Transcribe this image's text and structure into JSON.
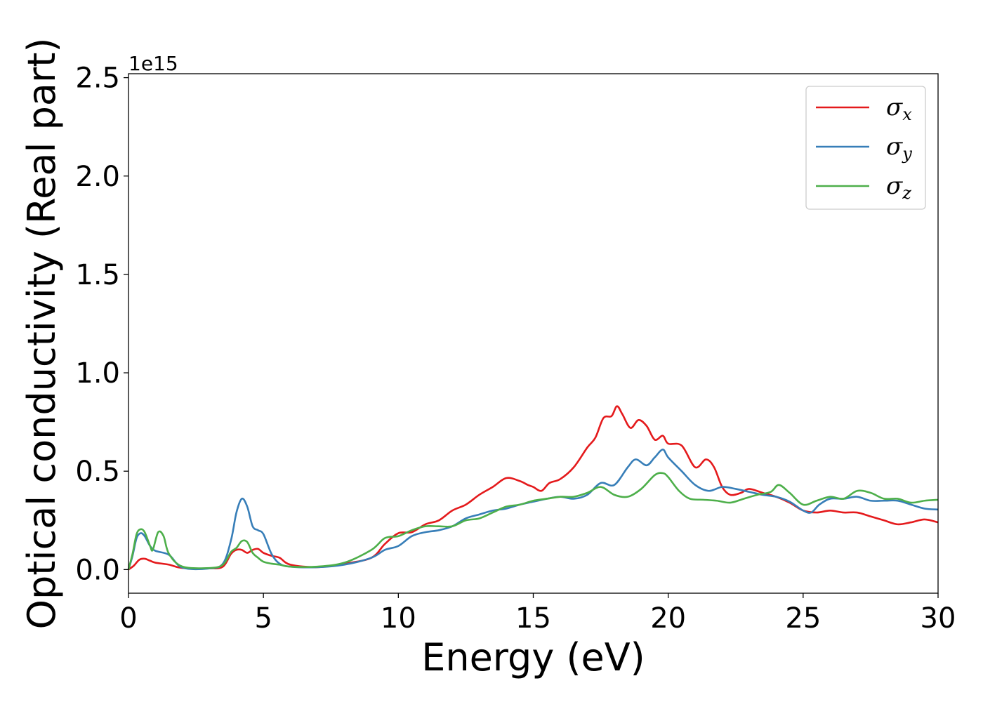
{
  "chart_data": {
    "type": "line",
    "xlabel": "Energy (eV)",
    "ylabel": "Optical conductivity (Real part)",
    "y_offset_text": "1e15",
    "xlim": [
      0,
      30
    ],
    "ylim": [
      -0.12,
      2.52
    ],
    "x_ticks": [
      0,
      5,
      10,
      15,
      20,
      25,
      30
    ],
    "x_tick_labels": [
      "0",
      "5",
      "10",
      "15",
      "20",
      "25",
      "30"
    ],
    "y_ticks": [
      0.0,
      0.5,
      1.0,
      1.5,
      2.0,
      2.5
    ],
    "y_tick_labels": [
      "0.0",
      "0.5",
      "1.0",
      "1.5",
      "2.0",
      "2.5"
    ],
    "grid": false,
    "legend_position": "top-right",
    "series": [
      {
        "name": "σx",
        "legend_base": "σ",
        "legend_sub": "x",
        "color": "#e41a1c",
        "points": [
          [
            0,
            0
          ],
          [
            0.2,
            0.02
          ],
          [
            0.4,
            0.05
          ],
          [
            0.6,
            0.055
          ],
          [
            0.8,
            0.045
          ],
          [
            1,
            0.035
          ],
          [
            1.5,
            0.025
          ],
          [
            2,
            0.008
          ],
          [
            3,
            0.006
          ],
          [
            3.5,
            0.015
          ],
          [
            3.8,
            0.08
          ],
          [
            4,
            0.1
          ],
          [
            4.2,
            0.1
          ],
          [
            4.4,
            0.085
          ],
          [
            4.6,
            0.1
          ],
          [
            4.8,
            0.105
          ],
          [
            5,
            0.085
          ],
          [
            5.3,
            0.07
          ],
          [
            5.6,
            0.06
          ],
          [
            6,
            0.025
          ],
          [
            7,
            0.012
          ],
          [
            8,
            0.03
          ],
          [
            9,
            0.06
          ],
          [
            9.5,
            0.13
          ],
          [
            10,
            0.185
          ],
          [
            10.5,
            0.19
          ],
          [
            11,
            0.23
          ],
          [
            11.5,
            0.25
          ],
          [
            12,
            0.3
          ],
          [
            12.5,
            0.33
          ],
          [
            13,
            0.38
          ],
          [
            13.5,
            0.42
          ],
          [
            14,
            0.465
          ],
          [
            14.5,
            0.45
          ],
          [
            14.8,
            0.43
          ],
          [
            15,
            0.42
          ],
          [
            15.3,
            0.4
          ],
          [
            15.6,
            0.44
          ],
          [
            16,
            0.46
          ],
          [
            16.5,
            0.52
          ],
          [
            17,
            0.62
          ],
          [
            17.3,
            0.67
          ],
          [
            17.6,
            0.77
          ],
          [
            17.9,
            0.78
          ],
          [
            18.1,
            0.83
          ],
          [
            18.3,
            0.79
          ],
          [
            18.6,
            0.72
          ],
          [
            18.9,
            0.76
          ],
          [
            19.2,
            0.73
          ],
          [
            19.5,
            0.66
          ],
          [
            19.8,
            0.68
          ],
          [
            20,
            0.64
          ],
          [
            20.5,
            0.63
          ],
          [
            21,
            0.52
          ],
          [
            21.4,
            0.56
          ],
          [
            21.7,
            0.52
          ],
          [
            22,
            0.42
          ],
          [
            22.3,
            0.38
          ],
          [
            22.7,
            0.39
          ],
          [
            23,
            0.41
          ],
          [
            23.5,
            0.39
          ],
          [
            24,
            0.37
          ],
          [
            24.5,
            0.34
          ],
          [
            25,
            0.3
          ],
          [
            25.5,
            0.29
          ],
          [
            26,
            0.3
          ],
          [
            26.5,
            0.29
          ],
          [
            27,
            0.29
          ],
          [
            27.5,
            0.27
          ],
          [
            28,
            0.25
          ],
          [
            28.5,
            0.23
          ],
          [
            29,
            0.24
          ],
          [
            29.5,
            0.255
          ],
          [
            30,
            0.24
          ]
        ]
      },
      {
        "name": "σy",
        "legend_base": "σ",
        "legend_sub": "y",
        "color": "#377eb8",
        "points": [
          [
            0,
            0
          ],
          [
            0.15,
            0.07
          ],
          [
            0.3,
            0.16
          ],
          [
            0.45,
            0.185
          ],
          [
            0.6,
            0.17
          ],
          [
            0.8,
            0.12
          ],
          [
            1,
            0.095
          ],
          [
            1.5,
            0.075
          ],
          [
            2,
            0.01
          ],
          [
            3,
            0.006
          ],
          [
            3.5,
            0.03
          ],
          [
            3.8,
            0.15
          ],
          [
            4,
            0.29
          ],
          [
            4.2,
            0.36
          ],
          [
            4.4,
            0.32
          ],
          [
            4.6,
            0.22
          ],
          [
            4.8,
            0.2
          ],
          [
            5,
            0.18
          ],
          [
            5.3,
            0.08
          ],
          [
            5.6,
            0.03
          ],
          [
            6,
            0.015
          ],
          [
            7,
            0.012
          ],
          [
            8,
            0.025
          ],
          [
            9,
            0.06
          ],
          [
            9.5,
            0.1
          ],
          [
            10,
            0.12
          ],
          [
            10.5,
            0.17
          ],
          [
            11,
            0.19
          ],
          [
            11.5,
            0.2
          ],
          [
            12,
            0.22
          ],
          [
            12.5,
            0.26
          ],
          [
            13,
            0.28
          ],
          [
            13.5,
            0.3
          ],
          [
            14,
            0.31
          ],
          [
            14.5,
            0.33
          ],
          [
            15,
            0.345
          ],
          [
            15.5,
            0.36
          ],
          [
            16,
            0.37
          ],
          [
            16.5,
            0.36
          ],
          [
            17,
            0.38
          ],
          [
            17.5,
            0.44
          ],
          [
            18,
            0.43
          ],
          [
            18.5,
            0.52
          ],
          [
            18.8,
            0.56
          ],
          [
            19.2,
            0.53
          ],
          [
            19.5,
            0.57
          ],
          [
            19.8,
            0.61
          ],
          [
            20,
            0.57
          ],
          [
            20.5,
            0.5
          ],
          [
            21,
            0.43
          ],
          [
            21.5,
            0.4
          ],
          [
            22,
            0.42
          ],
          [
            22.5,
            0.41
          ],
          [
            23,
            0.395
          ],
          [
            23.5,
            0.38
          ],
          [
            24,
            0.37
          ],
          [
            24.5,
            0.345
          ],
          [
            25,
            0.3
          ],
          [
            25.3,
            0.29
          ],
          [
            25.6,
            0.33
          ],
          [
            26,
            0.36
          ],
          [
            26.5,
            0.36
          ],
          [
            27,
            0.37
          ],
          [
            27.5,
            0.35
          ],
          [
            28,
            0.35
          ],
          [
            28.5,
            0.35
          ],
          [
            29,
            0.33
          ],
          [
            29.5,
            0.31
          ],
          [
            30,
            0.305
          ]
        ]
      },
      {
        "name": "σz",
        "legend_base": "σ",
        "legend_sub": "z",
        "color": "#4daf4a",
        "points": [
          [
            0,
            0
          ],
          [
            0.15,
            0.08
          ],
          [
            0.3,
            0.18
          ],
          [
            0.45,
            0.205
          ],
          [
            0.6,
            0.19
          ],
          [
            0.8,
            0.12
          ],
          [
            0.9,
            0.1
          ],
          [
            1.1,
            0.19
          ],
          [
            1.3,
            0.17
          ],
          [
            1.5,
            0.08
          ],
          [
            2,
            0.015
          ],
          [
            3,
            0.008
          ],
          [
            3.5,
            0.025
          ],
          [
            3.8,
            0.09
          ],
          [
            4,
            0.11
          ],
          [
            4.2,
            0.145
          ],
          [
            4.4,
            0.14
          ],
          [
            4.6,
            0.085
          ],
          [
            4.8,
            0.06
          ],
          [
            5,
            0.04
          ],
          [
            5.3,
            0.03
          ],
          [
            5.6,
            0.025
          ],
          [
            6,
            0.015
          ],
          [
            7,
            0.015
          ],
          [
            8,
            0.035
          ],
          [
            9,
            0.1
          ],
          [
            9.5,
            0.16
          ],
          [
            10,
            0.17
          ],
          [
            10.5,
            0.2
          ],
          [
            11,
            0.22
          ],
          [
            11.5,
            0.22
          ],
          [
            12,
            0.22
          ],
          [
            12.5,
            0.25
          ],
          [
            13,
            0.26
          ],
          [
            13.5,
            0.29
          ],
          [
            14,
            0.32
          ],
          [
            14.5,
            0.33
          ],
          [
            15,
            0.35
          ],
          [
            15.5,
            0.36
          ],
          [
            16,
            0.37
          ],
          [
            16.5,
            0.37
          ],
          [
            17,
            0.39
          ],
          [
            17.5,
            0.42
          ],
          [
            18,
            0.38
          ],
          [
            18.5,
            0.37
          ],
          [
            19,
            0.41
          ],
          [
            19.5,
            0.48
          ],
          [
            19.8,
            0.49
          ],
          [
            20,
            0.47
          ],
          [
            20.4,
            0.4
          ],
          [
            20.8,
            0.36
          ],
          [
            21.3,
            0.355
          ],
          [
            21.8,
            0.35
          ],
          [
            22.3,
            0.34
          ],
          [
            22.8,
            0.36
          ],
          [
            23.3,
            0.38
          ],
          [
            23.8,
            0.395
          ],
          [
            24.1,
            0.43
          ],
          [
            24.5,
            0.39
          ],
          [
            25,
            0.33
          ],
          [
            25.5,
            0.35
          ],
          [
            26,
            0.37
          ],
          [
            26.5,
            0.36
          ],
          [
            27,
            0.4
          ],
          [
            27.5,
            0.39
          ],
          [
            28,
            0.36
          ],
          [
            28.5,
            0.36
          ],
          [
            29,
            0.34
          ],
          [
            29.5,
            0.35
          ],
          [
            30,
            0.355
          ]
        ]
      }
    ]
  }
}
